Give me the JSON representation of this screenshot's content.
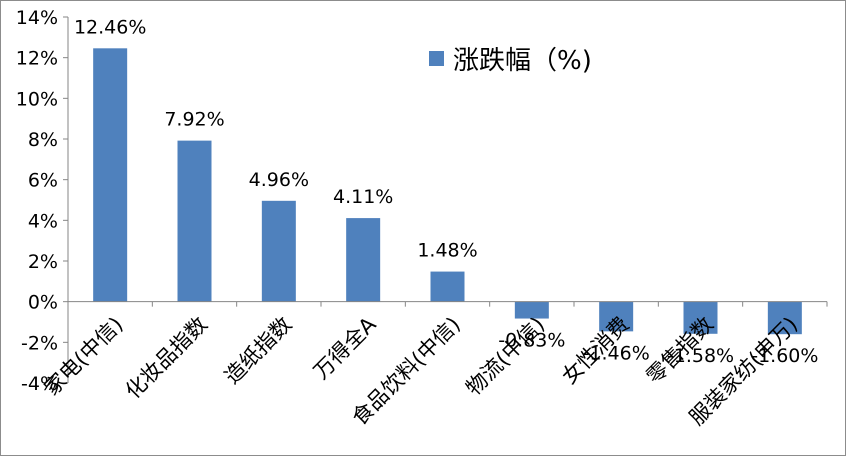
{
  "chart_data": {
    "type": "bar",
    "categories": [
      "家电(中信)",
      "化妆品指数",
      "造纸指数",
      "万得全A",
      "食品饮料(中信)",
      "物流(中信)",
      "女性消费",
      "零售指数",
      "服装家纺(申万)"
    ],
    "series": [
      {
        "name": "涨跌幅（%)",
        "values": [
          12.46,
          7.92,
          4.96,
          4.11,
          1.48,
          -0.83,
          -1.46,
          -1.58,
          -1.6
        ],
        "labels": [
          "12.46%",
          "7.92%",
          "4.96%",
          "4.11%",
          "1.48%",
          "-0.83%",
          "-1.46%",
          "-1.58%",
          "-1.60%"
        ],
        "color": "#4f81bd"
      }
    ],
    "yticks": [
      14,
      12,
      10,
      8,
      6,
      4,
      2,
      0,
      -2,
      -4
    ],
    "ytick_labels": [
      "14%",
      "12%",
      "10%",
      "8%",
      "6%",
      "4%",
      "2%",
      "0%",
      "-2%",
      "-4%"
    ],
    "ylim": [
      -4,
      14
    ],
    "grid": false,
    "legend_position": "top-right",
    "colors": {
      "axis": "#868686",
      "bar": "#4f81bd",
      "border": "#8c8c8c"
    }
  }
}
